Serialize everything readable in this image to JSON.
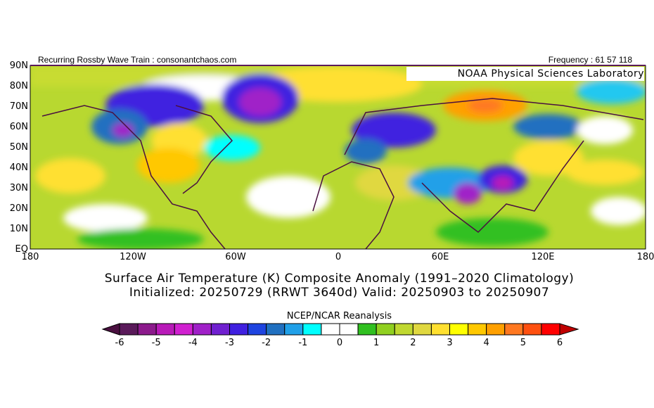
{
  "header": {
    "left": "Recurring Rossby Wave Train : consonantchaos.com",
    "right": "Frequency : 61 57 118",
    "watermark": "NOAA Physical Sciences Laboratory"
  },
  "map": {
    "lat_labels": [
      "90N",
      "80N",
      "70N",
      "60N",
      "50N",
      "40N",
      "30N",
      "20N",
      "10N",
      "EQ"
    ],
    "lon_labels": [
      "180",
      "120W",
      "60W",
      "0",
      "60E",
      "120E",
      "180"
    ]
  },
  "title": {
    "line1": "Surface Air Temperature (K) Composite Anomaly (1991–2020 Climatology)",
    "line2": "Initialized: 20250729 (RRWT 3640d) Valid: 20250903 to 20250907"
  },
  "colorbar": {
    "title": "NCEP/NCAR Reanalysis",
    "tick_labels": [
      "-6",
      "-5",
      "-4",
      "-3",
      "-2",
      "-1",
      "0",
      "1",
      "2",
      "3",
      "4",
      "5",
      "6"
    ],
    "colors": [
      "#5a1a5a",
      "#8c1a8c",
      "#b81ab8",
      "#d020d0",
      "#a020c8",
      "#7020d0",
      "#4020e0",
      "#1e44e0",
      "#2070c0",
      "#20a0e8",
      "#00ffff",
      "#ffffff",
      "#ffffff",
      "#30c020",
      "#90d020",
      "#c0d830",
      "#e0d840",
      "#ffe030",
      "#ffff00",
      "#ffc800",
      "#ffa000",
      "#ff7820",
      "#ff5010",
      "#ff0000"
    ],
    "under_color": "#4a1040",
    "over_color": "#c00000"
  }
}
